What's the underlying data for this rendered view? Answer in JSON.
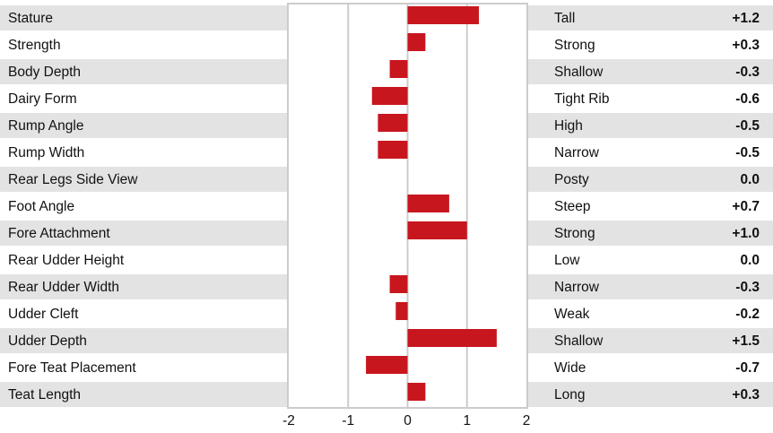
{
  "chart_data": {
    "type": "bar",
    "orientation": "horizontal",
    "xlim": [
      -2,
      2
    ],
    "x_ticks": [
      "-2",
      "-1",
      "0",
      "1",
      "2"
    ],
    "grid": true,
    "bar_color": "#c8161e",
    "row_band_color": "#e3e3e3",
    "categories": [
      "Stature",
      "Strength",
      "Body Depth",
      "Dairy Form",
      "Rump Angle",
      "Rump Width",
      "Rear Legs Side View",
      "Foot Angle",
      "Fore Attachment",
      "Rear Udder Height",
      "Rear Udder Width",
      "Udder Cleft",
      "Udder Depth",
      "Fore Teat Placement",
      "Teat Length"
    ],
    "values": [
      1.2,
      0.3,
      -0.3,
      -0.6,
      -0.5,
      -0.5,
      0.0,
      0.7,
      1.0,
      0.0,
      -0.3,
      -0.2,
      1.5,
      -0.7,
      0.3
    ],
    "descriptors": [
      "Tall",
      "Strong",
      "Shallow",
      "Tight Rib",
      "High",
      "Narrow",
      "Posty",
      "Steep",
      "Strong",
      "Low",
      "Narrow",
      "Weak",
      "Shallow",
      "Wide",
      "Long"
    ],
    "value_labels": [
      "+1.2",
      "+0.3",
      "-0.3",
      "-0.6",
      "-0.5",
      "-0.5",
      "0.0",
      "+0.7",
      "+1.0",
      "0.0",
      "-0.3",
      "-0.2",
      "+1.5",
      "-0.7",
      "+0.3"
    ]
  }
}
